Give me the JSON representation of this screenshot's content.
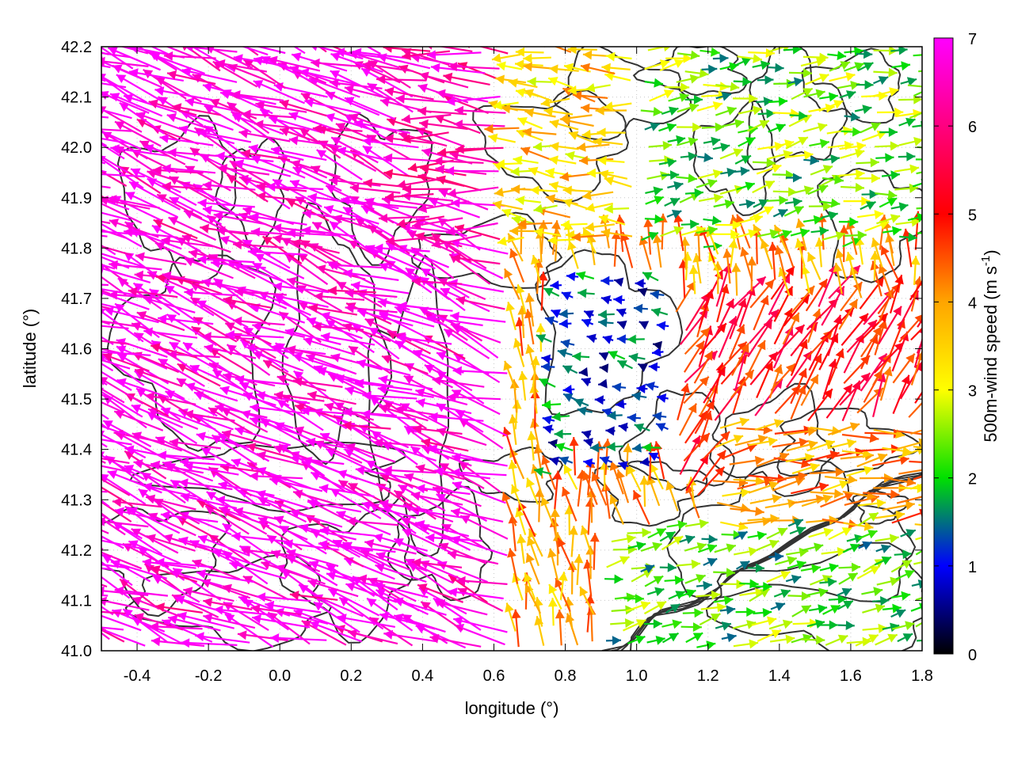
{
  "chart_data": {
    "type": "vector-field",
    "xlabel": "longitude (°)",
    "ylabel": "latitude (°)",
    "xlim": [
      -0.5,
      1.8
    ],
    "ylim": [
      41.0,
      42.2
    ],
    "xticks": [
      "-0.4",
      "-0.2",
      "0.0",
      "0.2",
      "0.4",
      "0.6",
      "0.8",
      "1.0",
      "1.2",
      "1.4",
      "1.6",
      "1.8"
    ],
    "yticks": [
      "41.0",
      "41.1",
      "41.2",
      "41.3",
      "41.4",
      "41.5",
      "41.6",
      "41.7",
      "41.8",
      "41.9",
      "42.0",
      "42.1",
      "42.2"
    ],
    "grid": true,
    "colorbar": {
      "label_main": "500m-wind speed (m s",
      "label_sup": "-1",
      "label_end": ")",
      "range": [
        0,
        7
      ],
      "ticks": [
        "0",
        "1",
        "2",
        "3",
        "4",
        "5",
        "6",
        "7"
      ],
      "palette": [
        "#000000",
        "#0000ff",
        "#00e000",
        "#ffff00",
        "#ffa500",
        "#ff0000",
        "#ff00ff"
      ]
    },
    "wind_regions": [
      {
        "name": "west",
        "lon": [
          -0.5,
          0.65
        ],
        "lat": [
          41.0,
          42.2
        ],
        "speed": 6.8,
        "direction_to_deg": 160
      },
      {
        "name": "northeast",
        "lon": [
          0.95,
          1.8
        ],
        "lat": [
          41.8,
          42.2
        ],
        "speed": 2.3,
        "direction_to_deg": 10
      },
      {
        "name": "central-north",
        "lon": [
          0.4,
          1.0
        ],
        "lat": [
          41.8,
          42.2
        ],
        "speed": 3.5,
        "direction_to_deg": 175
      },
      {
        "name": "central-basin",
        "lon": [
          0.75,
          1.1
        ],
        "lat": [
          41.35,
          41.75
        ],
        "speed": 1.2,
        "direction_to_deg": 170
      },
      {
        "name": "southeast",
        "lon": [
          0.9,
          1.8
        ],
        "lat": [
          41.0,
          41.25
        ],
        "speed": 2.2,
        "direction_to_deg": 15
      },
      {
        "name": "east-mid",
        "lon": [
          1.1,
          1.8
        ],
        "lat": [
          41.3,
          41.7
        ],
        "speed": 5.0,
        "direction_to_deg": 60
      },
      {
        "name": "east-band",
        "lon": [
          1.2,
          1.8
        ],
        "lat": [
          41.25,
          41.45
        ],
        "speed": 4.0,
        "direction_to_deg": 5
      }
    ]
  }
}
